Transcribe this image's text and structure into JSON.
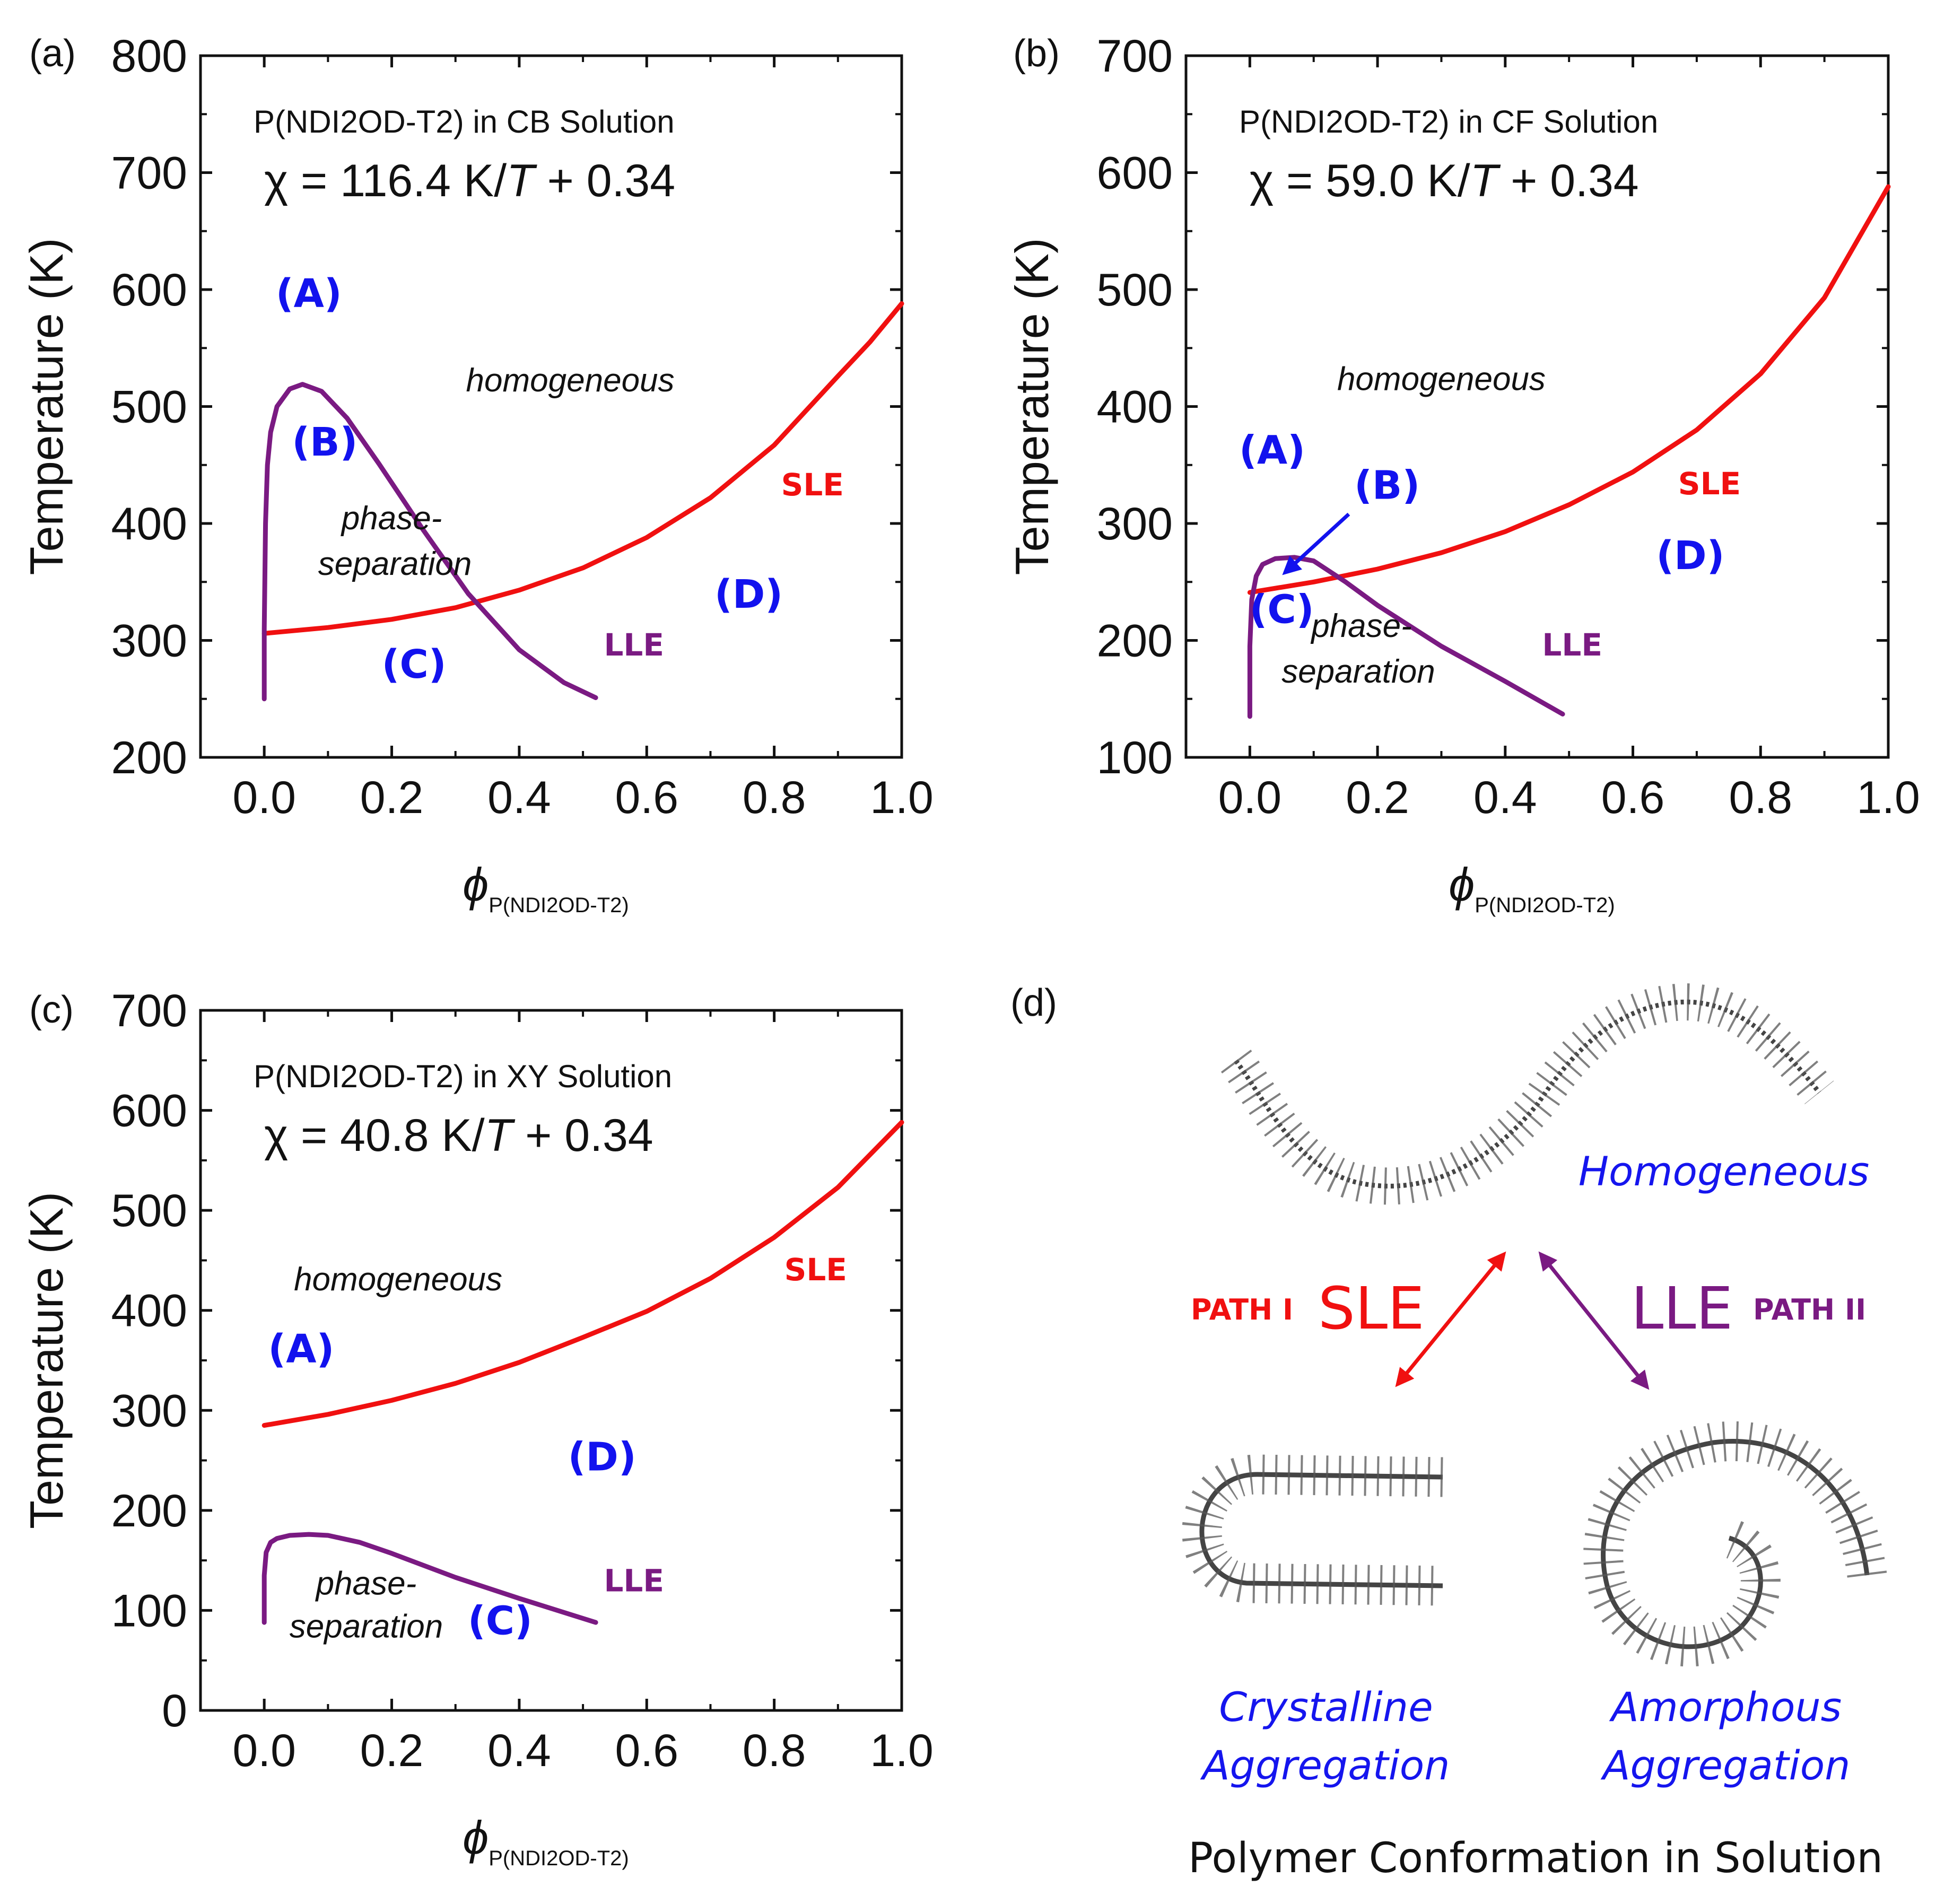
{
  "colors": {
    "sle": "#f01010",
    "lle": "#7a1a82",
    "region": "#1212ee",
    "conformation_text": "#1515ee"
  },
  "chart_data": [
    {
      "id": "a",
      "type": "line",
      "panel_label": "(a)",
      "subtitle": "P(NDI2OD-T2) in CB Solution",
      "chi": {
        "prefix": "χ = 116.4 K/",
        "T": "T",
        "suffix": " + 0.34"
      },
      "ylabel": "Temperature (K)",
      "xlabel_symbol": "ϕ",
      "xlabel_sub": "P(NDI2OD-T2)",
      "xlim": [
        -0.1,
        1.0
      ],
      "ylim": [
        200,
        800
      ],
      "xticks": [
        "0.0",
        "0.2",
        "0.4",
        "0.6",
        "0.8",
        "1.0"
      ],
      "yticks": [
        "200",
        "300",
        "400",
        "500",
        "600",
        "700",
        "800"
      ],
      "series": [
        {
          "name": "SLE",
          "color": "#f01010",
          "x": [
            0.0,
            0.1,
            0.2,
            0.3,
            0.4,
            0.5,
            0.6,
            0.7,
            0.8,
            0.9,
            0.95,
            1.0
          ],
          "y": [
            306,
            311,
            318,
            328,
            343,
            362,
            388,
            422,
            467,
            526,
            555,
            588
          ]
        },
        {
          "name": "LLE",
          "color": "#7a1a82",
          "x": [
            0.0,
            0.0,
            0.002,
            0.005,
            0.01,
            0.02,
            0.04,
            0.06,
            0.09,
            0.13,
            0.18,
            0.25,
            0.32,
            0.4,
            0.47,
            0.52
          ],
          "y": [
            250,
            310,
            400,
            450,
            478,
            500,
            515,
            519,
            513,
            490,
            451,
            394,
            340,
            292,
            264,
            251
          ]
        }
      ],
      "labels": [
        {
          "text": "(A)",
          "x": 0.07,
          "y": 585,
          "style": "region"
        },
        {
          "text": "homogeneous",
          "x": 0.48,
          "y": 513,
          "style": "note"
        },
        {
          "text": "(B)",
          "x": 0.095,
          "y": 458,
          "style": "region"
        },
        {
          "text": "phase-",
          "x": 0.2,
          "y": 395,
          "style": "note"
        },
        {
          "text": "separation",
          "x": 0.205,
          "y": 356,
          "style": "note"
        },
        {
          "text": "SLE",
          "x": 0.86,
          "y": 424,
          "style": "sle"
        },
        {
          "text": "(D)",
          "x": 0.76,
          "y": 328,
          "style": "region"
        },
        {
          "text": "(C)",
          "x": 0.235,
          "y": 268,
          "style": "region"
        },
        {
          "text": "LLE",
          "x": 0.58,
          "y": 287,
          "style": "lle"
        }
      ]
    },
    {
      "id": "b",
      "type": "line",
      "panel_label": "(b)",
      "subtitle": "P(NDI2OD-T2) in CF Solution",
      "chi": {
        "prefix": "χ = 59.0 K/",
        "T": "T",
        "suffix": " + 0.34"
      },
      "ylabel": "Temperature (K)",
      "xlabel_symbol": "ϕ",
      "xlabel_sub": "P(NDI2OD-T2)",
      "xlim": [
        -0.1,
        1.0
      ],
      "ylim": [
        100,
        700
      ],
      "xticks": [
        "0.0",
        "0.2",
        "0.4",
        "0.6",
        "0.8",
        "1.0"
      ],
      "yticks": [
        "100",
        "200",
        "300",
        "400",
        "500",
        "600",
        "700"
      ],
      "series": [
        {
          "name": "SLE",
          "color": "#f01010",
          "x": [
            0.0,
            0.1,
            0.2,
            0.3,
            0.4,
            0.5,
            0.6,
            0.7,
            0.8,
            0.9,
            1.0
          ],
          "y": [
            241,
            250,
            261,
            275,
            293,
            316,
            344,
            380,
            428,
            493,
            588
          ]
        },
        {
          "name": "LLE",
          "color": "#7a1a82",
          "x": [
            0.0,
            0.0,
            0.003,
            0.01,
            0.02,
            0.04,
            0.07,
            0.1,
            0.15,
            0.2,
            0.3,
            0.4,
            0.49
          ],
          "y": [
            135,
            195,
            235,
            255,
            265,
            270,
            271,
            268,
            250,
            230,
            195,
            165,
            137
          ]
        }
      ],
      "labels": [
        {
          "text": "homogeneous",
          "x": 0.3,
          "y": 414,
          "style": "note"
        },
        {
          "text": "(A)",
          "x": 0.035,
          "y": 351,
          "style": "region"
        },
        {
          "text": "(B)",
          "x": 0.215,
          "y": 321,
          "style": "region"
        },
        {
          "text": "SLE",
          "x": 0.72,
          "y": 325,
          "style": "sle"
        },
        {
          "text": "(D)",
          "x": 0.69,
          "y": 261,
          "style": "region"
        },
        {
          "text": "(C)",
          "x": 0.05,
          "y": 215,
          "style": "region"
        },
        {
          "text": "phase-",
          "x": 0.175,
          "y": 203,
          "style": "note"
        },
        {
          "text": "separation",
          "x": 0.17,
          "y": 164,
          "style": "note"
        },
        {
          "text": "LLE",
          "x": 0.505,
          "y": 187,
          "style": "lle"
        }
      ],
      "arrow": {
        "from": [
          0.155,
          308
        ],
        "to": [
          0.055,
          258
        ],
        "color": "#1212ee"
      }
    },
    {
      "id": "c",
      "type": "line",
      "panel_label": "(c)",
      "subtitle": "P(NDI2OD-T2) in XY Solution",
      "chi": {
        "prefix": "χ = 40.8 K/",
        "T": "T",
        "suffix": " + 0.34"
      },
      "ylabel": "Temperature (K)",
      "xlabel_symbol": "ϕ",
      "xlabel_sub": "P(NDI2OD-T2)",
      "xlim": [
        -0.1,
        1.0
      ],
      "ylim": [
        0,
        700
      ],
      "xticks": [
        "0.0",
        "0.2",
        "0.4",
        "0.6",
        "0.8",
        "1.0"
      ],
      "yticks": [
        "0",
        "100",
        "200",
        "300",
        "400",
        "500",
        "600",
        "700"
      ],
      "series": [
        {
          "name": "SLE",
          "color": "#f01010",
          "x": [
            0.0,
            0.1,
            0.2,
            0.3,
            0.4,
            0.5,
            0.6,
            0.7,
            0.8,
            0.9,
            1.0
          ],
          "y": [
            285,
            296,
            310,
            327,
            348,
            373,
            399,
            432,
            473,
            523,
            588
          ]
        },
        {
          "name": "LLE",
          "color": "#7a1a82",
          "x": [
            0.0,
            0.0,
            0.003,
            0.01,
            0.02,
            0.04,
            0.07,
            0.1,
            0.15,
            0.2,
            0.3,
            0.4,
            0.52
          ],
          "y": [
            88,
            135,
            158,
            168,
            172,
            175,
            176,
            175,
            168,
            157,
            133,
            112,
            88
          ]
        }
      ],
      "labels": [
        {
          "text": "homogeneous",
          "x": 0.21,
          "y": 420,
          "style": "note"
        },
        {
          "text": "SLE",
          "x": 0.865,
          "y": 430,
          "style": "sle"
        },
        {
          "text": "(A)",
          "x": 0.058,
          "y": 348,
          "style": "region"
        },
        {
          "text": "(D)",
          "x": 0.53,
          "y": 240,
          "style": "region"
        },
        {
          "text": "phase-",
          "x": 0.16,
          "y": 116,
          "style": "note"
        },
        {
          "text": "LLE",
          "x": 0.58,
          "y": 119,
          "style": "lle"
        },
        {
          "text": "separation",
          "x": 0.16,
          "y": 73,
          "style": "note"
        },
        {
          "text": "(C)",
          "x": 0.37,
          "y": 76,
          "style": "region"
        }
      ]
    }
  ],
  "panel_d": {
    "panel_label": "(d)",
    "homogeneous": "Homogeneous",
    "path1": "PATH I",
    "sle": "SLE",
    "lle": "LLE",
    "path2": "PATH II",
    "crystalline_1": "Crystalline",
    "crystalline_2": "Aggregation",
    "amorphous_1": "Amorphous",
    "amorphous_2": "Aggregation",
    "footer": "Polymer Conformation in Solution"
  }
}
